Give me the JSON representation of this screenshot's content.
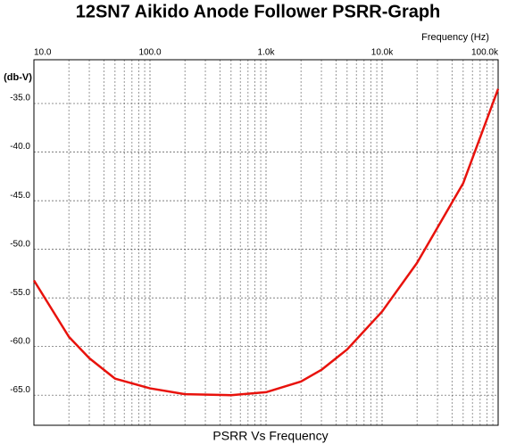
{
  "chart_data": {
    "type": "line",
    "title": "12SN7 Aikido Anode Follower PSRR-Graph",
    "x_label": "Frequency  (Hz)",
    "y_label": "(db-V)",
    "x_scale": "log",
    "grid": true,
    "xlim": [
      10,
      100000
    ],
    "ylim": [
      -68.1,
      -30.5
    ],
    "xticks": [
      {
        "value": 10,
        "label": "10.0"
      },
      {
        "value": 100,
        "label": "100.0"
      },
      {
        "value": 1000,
        "label": "1.0k"
      },
      {
        "value": 10000,
        "label": "10.0k"
      },
      {
        "value": 100000,
        "label": "100.0k"
      }
    ],
    "yticks": [
      {
        "value": -35,
        "label": "-35.0"
      },
      {
        "value": -40,
        "label": "-40.0"
      },
      {
        "value": -45,
        "label": "-45.0"
      },
      {
        "value": -50,
        "label": "-50.0"
      },
      {
        "value": -55,
        "label": "-55.0"
      },
      {
        "value": -60,
        "label": "-60.0"
      },
      {
        "value": -65,
        "label": "-65.0"
      }
    ],
    "x": [
      10,
      20,
      30,
      50,
      100,
      200,
      500,
      1000,
      2000,
      3000,
      5000,
      10000,
      20000,
      50000,
      100000
    ],
    "series": [
      {
        "name": "PSRR Vs Frequency",
        "color": "#e8120c",
        "values": [
          -53.2,
          -59.0,
          -61.2,
          -63.3,
          -64.3,
          -64.9,
          -65.0,
          -64.7,
          -63.6,
          -62.4,
          -60.3,
          -56.4,
          -51.4,
          -43.2,
          -33.5
        ]
      }
    ]
  }
}
